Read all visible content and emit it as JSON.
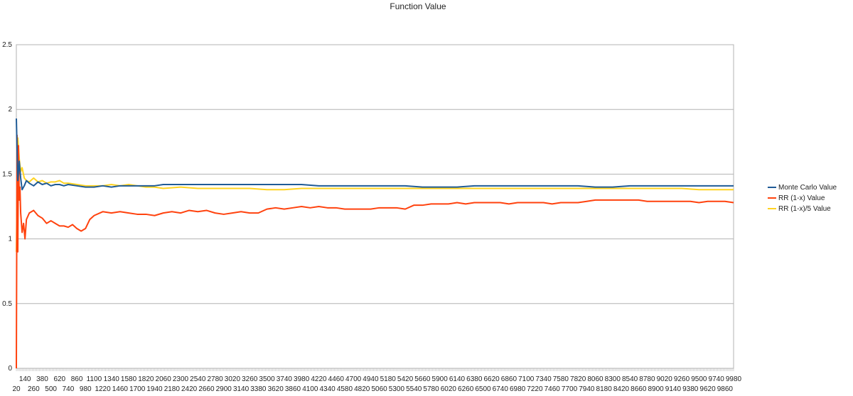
{
  "chart_data": {
    "type": "line",
    "title": "Function Value",
    "xlabel": "",
    "ylabel": "",
    "ylim": [
      0,
      2.5
    ],
    "yticks": [
      "0",
      "0.5",
      "1",
      "1.5",
      "2",
      "2.5"
    ],
    "xlim": [
      20,
      9980
    ],
    "xticks_row1": [
      140,
      380,
      620,
      860,
      1100,
      1340,
      1580,
      1820,
      2060,
      2300,
      2540,
      2780,
      3020,
      3260,
      3500,
      3740,
      3980,
      4220,
      4460,
      4700,
      4940,
      5180,
      5420,
      5660,
      5900,
      6140,
      6380,
      6620,
      6860,
      7100,
      7340,
      7580,
      7820,
      8060,
      8300,
      8540,
      8780,
      9020,
      9260,
      9500,
      9740,
      9980
    ],
    "xticks_row2": [
      20,
      260,
      500,
      740,
      980,
      1220,
      1460,
      1700,
      1940,
      2180,
      2420,
      2660,
      2900,
      3140,
      3380,
      3620,
      3860,
      4100,
      4340,
      4580,
      4820,
      5060,
      5300,
      5540,
      5780,
      6020,
      6260,
      6500,
      6740,
      6980,
      7220,
      7460,
      7700,
      7940,
      8180,
      8420,
      8660,
      8900,
      9140,
      9380,
      9620,
      9860
    ],
    "grid": true,
    "legend_position": "right",
    "series": [
      {
        "name": "Monte Carlo Value",
        "color": "#1f5b96",
        "x": [
          20,
          40,
          60,
          80,
          100,
          130,
          160,
          200,
          260,
          320,
          380,
          440,
          500,
          560,
          620,
          680,
          740,
          860,
          980,
          1100,
          1220,
          1340,
          1460,
          1580,
          1700,
          1820,
          1940,
          2060,
          2300,
          2540,
          2780,
          3020,
          3260,
          3500,
          3740,
          3980,
          4220,
          4460,
          4700,
          4940,
          5180,
          5420,
          5660,
          5900,
          6140,
          6380,
          6620,
          6860,
          7100,
          7340,
          7580,
          7820,
          8060,
          8300,
          8540,
          8780,
          9020,
          9260,
          9500,
          9740,
          9980
        ],
        "values": [
          1.93,
          1.45,
          1.6,
          1.47,
          1.38,
          1.41,
          1.45,
          1.43,
          1.41,
          1.44,
          1.42,
          1.43,
          1.41,
          1.42,
          1.42,
          1.41,
          1.42,
          1.41,
          1.4,
          1.4,
          1.41,
          1.4,
          1.41,
          1.41,
          1.41,
          1.41,
          1.41,
          1.42,
          1.42,
          1.42,
          1.42,
          1.42,
          1.42,
          1.42,
          1.42,
          1.42,
          1.41,
          1.41,
          1.41,
          1.41,
          1.41,
          1.41,
          1.4,
          1.4,
          1.4,
          1.41,
          1.41,
          1.41,
          1.41,
          1.41,
          1.41,
          1.41,
          1.4,
          1.4,
          1.41,
          1.41,
          1.41,
          1.41,
          1.41,
          1.41,
          1.41
        ]
      },
      {
        "name": "RR (1-x) Value",
        "color": "#ff420e",
        "x": [
          20,
          30,
          40,
          50,
          60,
          70,
          80,
          100,
          120,
          140,
          160,
          200,
          260,
          320,
          380,
          440,
          500,
          560,
          620,
          680,
          740,
          800,
          860,
          920,
          980,
          1040,
          1100,
          1220,
          1340,
          1460,
          1580,
          1700,
          1820,
          1940,
          2060,
          2180,
          2300,
          2420,
          2540,
          2660,
          2780,
          2900,
          3020,
          3140,
          3260,
          3380,
          3500,
          3620,
          3740,
          3860,
          3980,
          4100,
          4220,
          4340,
          4460,
          4580,
          4700,
          4820,
          4940,
          5060,
          5180,
          5300,
          5420,
          5540,
          5660,
          5780,
          5900,
          6020,
          6140,
          6260,
          6380,
          6500,
          6620,
          6740,
          6860,
          6980,
          7100,
          7220,
          7340,
          7460,
          7580,
          7700,
          7820,
          7940,
          8060,
          8180,
          8300,
          8420,
          8540,
          8660,
          8780,
          8900,
          9020,
          9140,
          9260,
          9380,
          9500,
          9620,
          9740,
          9860,
          9980
        ],
        "values": [
          0.0,
          1.8,
          0.9,
          1.72,
          1.3,
          1.4,
          1.2,
          1.05,
          1.12,
          1.0,
          1.15,
          1.2,
          1.22,
          1.18,
          1.16,
          1.12,
          1.14,
          1.12,
          1.1,
          1.1,
          1.09,
          1.11,
          1.08,
          1.06,
          1.08,
          1.15,
          1.18,
          1.21,
          1.2,
          1.21,
          1.2,
          1.19,
          1.19,
          1.18,
          1.2,
          1.21,
          1.2,
          1.22,
          1.21,
          1.22,
          1.2,
          1.19,
          1.2,
          1.21,
          1.2,
          1.2,
          1.23,
          1.24,
          1.23,
          1.24,
          1.25,
          1.24,
          1.25,
          1.24,
          1.24,
          1.23,
          1.23,
          1.23,
          1.23,
          1.24,
          1.24,
          1.24,
          1.23,
          1.26,
          1.26,
          1.27,
          1.27,
          1.27,
          1.28,
          1.27,
          1.28,
          1.28,
          1.28,
          1.28,
          1.27,
          1.28,
          1.28,
          1.28,
          1.28,
          1.27,
          1.28,
          1.28,
          1.28,
          1.29,
          1.3,
          1.3,
          1.3,
          1.3,
          1.3,
          1.3,
          1.29,
          1.29,
          1.29,
          1.29,
          1.29,
          1.29,
          1.28,
          1.29,
          1.29,
          1.29,
          1.28
        ]
      },
      {
        "name": "RR (1-x)/5 Value",
        "color": "#ffd320",
        "x": [
          20,
          40,
          60,
          80,
          100,
          130,
          160,
          200,
          260,
          320,
          380,
          440,
          500,
          560,
          620,
          680,
          740,
          860,
          980,
          1100,
          1220,
          1340,
          1460,
          1580,
          1700,
          1820,
          1940,
          2060,
          2300,
          2540,
          2780,
          3020,
          3260,
          3500,
          3740,
          3980,
          4220,
          4460,
          4700,
          4940,
          5180,
          5420,
          5660,
          5900,
          6140,
          6380,
          6620,
          6860,
          7100,
          7340,
          7580,
          7820,
          8060,
          8300,
          8540,
          8780,
          9020,
          9260,
          9500,
          9740,
          9980
        ],
        "values": [
          0.9,
          1.78,
          1.62,
          1.52,
          1.55,
          1.47,
          1.45,
          1.44,
          1.47,
          1.44,
          1.45,
          1.43,
          1.44,
          1.44,
          1.45,
          1.43,
          1.43,
          1.42,
          1.41,
          1.41,
          1.41,
          1.42,
          1.41,
          1.42,
          1.41,
          1.4,
          1.4,
          1.39,
          1.4,
          1.39,
          1.39,
          1.39,
          1.39,
          1.38,
          1.38,
          1.39,
          1.39,
          1.39,
          1.39,
          1.39,
          1.39,
          1.39,
          1.39,
          1.39,
          1.39,
          1.39,
          1.39,
          1.39,
          1.39,
          1.39,
          1.39,
          1.39,
          1.39,
          1.39,
          1.39,
          1.39,
          1.39,
          1.39,
          1.38,
          1.38,
          1.38
        ]
      }
    ]
  }
}
